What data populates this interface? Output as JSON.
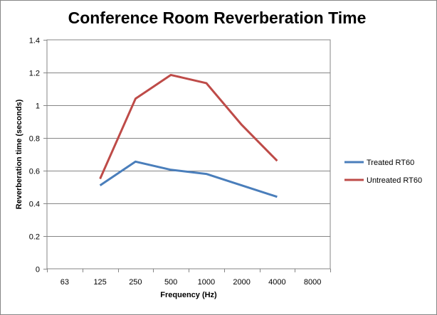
{
  "chart_data": {
    "type": "line",
    "title": "Conference Room Reverberation Time",
    "xlabel": "Frequency (Hz)",
    "ylabel": "Reverberation time (seconds)",
    "categories": [
      "63",
      "125",
      "250",
      "500",
      "1000",
      "2000",
      "4000",
      "8000"
    ],
    "ylim": [
      0,
      1.4
    ],
    "yticks": [
      "0",
      "0.2",
      "0.4",
      "0.6",
      "0.8",
      "1",
      "1.2",
      "1.4"
    ],
    "grid": "horizontal",
    "legend_position": "right",
    "series": [
      {
        "name": "Treated RT60",
        "color": "#4a7ebb",
        "values": [
          null,
          0.51,
          0.655,
          0.605,
          0.58,
          0.51,
          0.44,
          null
        ]
      },
      {
        "name": "Untreated RT60",
        "color": "#be4b48",
        "values": [
          null,
          0.55,
          1.04,
          1.185,
          1.135,
          0.88,
          0.66,
          null
        ]
      }
    ]
  }
}
